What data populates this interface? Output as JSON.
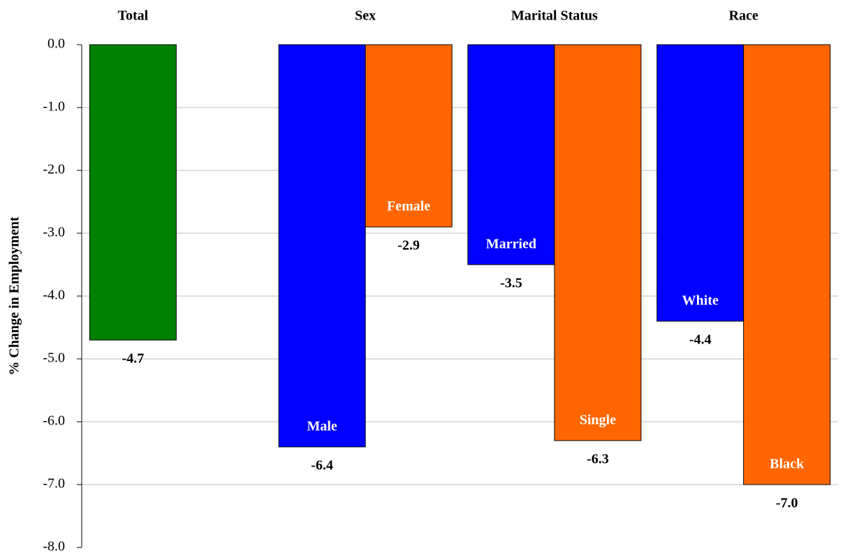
{
  "chart_data": {
    "type": "bar",
    "y_label": "% Change in Employment",
    "groups": [
      {
        "name": "Total",
        "bars": [
          {
            "color": "#008000",
            "value": -4.7
          }
        ]
      },
      {
        "name": "Sex",
        "bars": [
          {
            "label": "Male",
            "color": "#0000ff",
            "value": -6.4
          },
          {
            "label": "Female",
            "color": "#ff6600",
            "value": -2.9
          }
        ]
      },
      {
        "name": "Marital Status",
        "bars": [
          {
            "label": "Married",
            "color": "#0000ff",
            "value": -3.5
          },
          {
            "label": "Single",
            "color": "#ff6600",
            "value": -6.3
          }
        ]
      },
      {
        "name": "Race",
        "bars": [
          {
            "label": "White",
            "color": "#0000ff",
            "value": -4.4
          },
          {
            "label": "Black",
            "color": "#ff6600",
            "value": -7.0
          }
        ]
      }
    ],
    "ylim": [
      -8,
      0
    ],
    "yticks": [
      {
        "value": 0,
        "label": "0.0"
      },
      {
        "value": -1,
        "label": "-1.0"
      },
      {
        "value": -2,
        "label": "-2.0"
      },
      {
        "value": -3,
        "label": "-3.0"
      },
      {
        "value": -4,
        "label": "-4.0"
      },
      {
        "value": -5,
        "label": "-5.0"
      },
      {
        "value": -6,
        "label": "-6.0"
      },
      {
        "value": -7,
        "label": "-7.0"
      },
      {
        "value": -8,
        "label": "-8.0"
      }
    ],
    "value_labels": [
      [
        "-4.7"
      ],
      [
        "-6.4",
        "-2.9"
      ],
      [
        "-3.5",
        "-6.3"
      ],
      [
        "-4.4",
        "-7.0"
      ]
    ],
    "grid": true
  }
}
